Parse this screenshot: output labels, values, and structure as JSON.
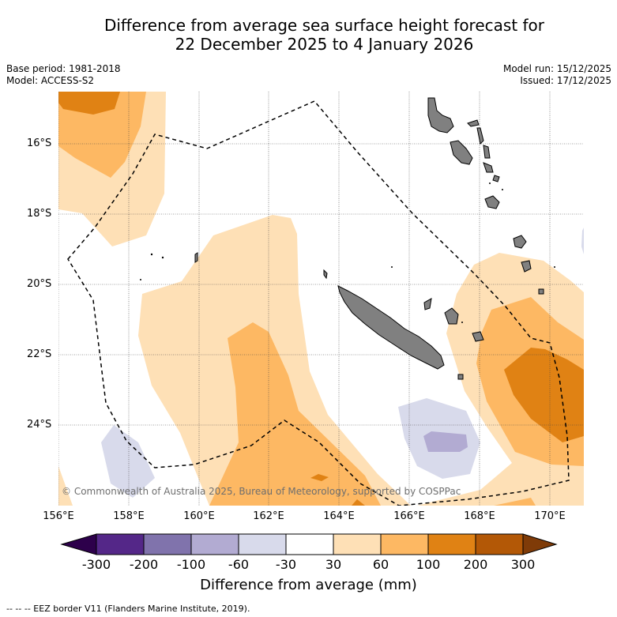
{
  "title": {
    "line1": "Difference from average sea surface height forecast for",
    "line2": "22 December 2025 to 4 January 2026"
  },
  "meta": {
    "base_period": "Base period: 1981-2018",
    "model": "Model: ACCESS-S2",
    "model_run": "Model run: 15/12/2025",
    "issued": "Issued: 17/12/2025"
  },
  "map": {
    "lat_labels": [
      "16°S",
      "18°S",
      "20°S",
      "22°S",
      "24°S"
    ],
    "lon_labels": [
      "156°E",
      "158°E",
      "160°E",
      "162°E",
      "164°E",
      "166°E",
      "168°E",
      "170°E"
    ],
    "copyright": "© Commonwealth of Australia 2025, Bureau of Meteorology, supported by COSPPac"
  },
  "colorbar": {
    "labels": [
      "-300",
      "-200",
      "-100",
      "-60",
      "-30",
      "30",
      "60",
      "100",
      "200",
      "300"
    ],
    "title": "Difference from average (mm)",
    "colors": [
      "#2d004b",
      "#542788",
      "#8073ac",
      "#b2abd2",
      "#d8daeb",
      "#ffffff",
      "#fee0b6",
      "#fdb863",
      "#e08214",
      "#b35806",
      "#7f3b08"
    ]
  },
  "legend": {
    "eez": "--  --  -- EEZ border V11 (Flanders Marine Institute, 2019)."
  }
}
